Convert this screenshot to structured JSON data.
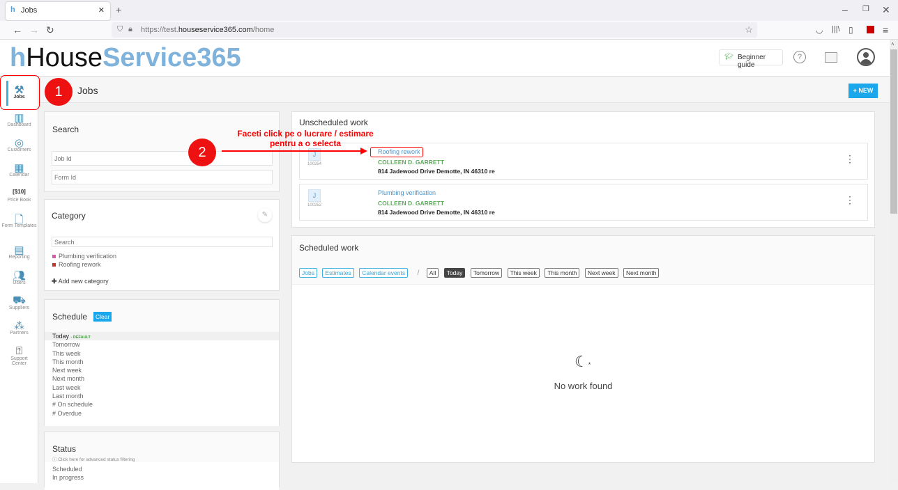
{
  "browser": {
    "tab_title": "Jobs",
    "url_prefix": "https://test.",
    "url_domain": "houseservice365.com",
    "url_path": "/home"
  },
  "header": {
    "logo_part1": "House",
    "logo_part2": "Service365",
    "beginner_guide": "Beginner guide"
  },
  "sidebar": {
    "items": [
      {
        "label": "Jobs",
        "icon": "tools-icon"
      },
      {
        "label": "Dashboard",
        "icon": "chart-icon"
      },
      {
        "label": "Customers",
        "icon": "target-icon"
      },
      {
        "label": "Calendar",
        "icon": "calendar-icon"
      },
      {
        "label": "Price Book",
        "icon": "price-tag-icon"
      },
      {
        "label": "Form Templates",
        "icon": "form-icon"
      },
      {
        "label": "Reporting",
        "icon": "report-icon"
      },
      {
        "label": "Users",
        "icon": "users-icon"
      },
      {
        "label": "Suppliers",
        "icon": "truck-icon"
      },
      {
        "label": "Partners",
        "icon": "partners-icon"
      },
      {
        "label": "Support Center",
        "icon": "help-icon"
      }
    ]
  },
  "page": {
    "title": "Jobs",
    "new_button": "+ NEW"
  },
  "search": {
    "title": "Search",
    "job_id_placeholder": "Job Id",
    "form_id_placeholder": "Form Id"
  },
  "category": {
    "title": "Category",
    "search_placeholder": "Search",
    "items": [
      {
        "label": "Plumbing verification",
        "color": "#d85aa8"
      },
      {
        "label": "Roofing rework",
        "color": "#c0392b"
      }
    ],
    "add_label": "Add new category"
  },
  "schedule": {
    "title": "Schedule",
    "clear": "Clear",
    "default_tag": "- DEFAULT",
    "items": [
      "Today",
      "Tomorrow",
      "This week",
      "This month",
      "Next week",
      "Next month",
      "Last week",
      "Last month",
      "# On schedule",
      "# Overdue"
    ]
  },
  "status": {
    "title": "Status",
    "hint": "Click here for advanced status filtering",
    "items": [
      "Scheduled",
      "In progress"
    ]
  },
  "unscheduled": {
    "title": "Unscheduled work",
    "jobs": [
      {
        "badge": "J",
        "id": "100254",
        "name": "Roofing rework",
        "customer": "COLLEEN D. GARRETT",
        "address": "814 Jadewood Drive Demotte, IN 46310 re"
      },
      {
        "badge": "J",
        "id": "100252",
        "name": "Plumbing verification",
        "customer": "COLLEEN D. GARRETT",
        "address": "814 Jadewood Drive Demotte, IN 46310 re"
      }
    ]
  },
  "scheduled": {
    "title": "Scheduled work",
    "type_filters": [
      "Jobs",
      "Estimates",
      "Calendar events"
    ],
    "separator": "/",
    "date_filters": [
      "All",
      "Today",
      "Tomorrow",
      "This week",
      "This month",
      "Next week",
      "Next month"
    ],
    "active_filter": "Today",
    "empty_text": "No work found"
  },
  "annotations": {
    "step1": "1",
    "step2": "2",
    "instruction_line1": "Faceti click pe o lucrare / estimare",
    "instruction_line2": "pentru a o selecta"
  }
}
